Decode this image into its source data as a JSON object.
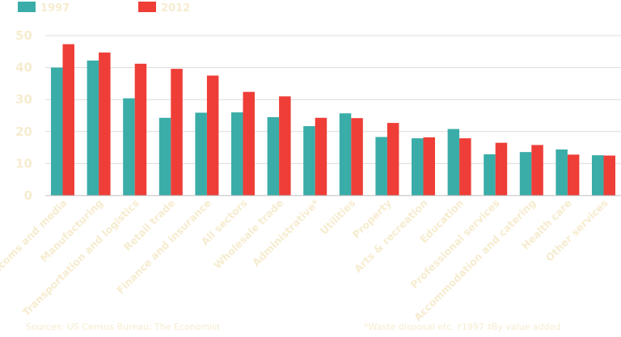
{
  "chart_data": {
    "type": "bar",
    "title": "",
    "xlabel": "",
    "ylabel": "",
    "ylim": [
      0,
      50
    ],
    "yticks": [
      0,
      10,
      20,
      30,
      40,
      50
    ],
    "grid": true,
    "legend": "top-left",
    "categories": [
      "IT, telecoms and media",
      "Manufacturing",
      "Transportation and logistics",
      "Retail trade",
      "Finance and insurance",
      "All sectors",
      "Wholesale trade",
      "Administrative*",
      "Utilities",
      "Property",
      "Arts & recreation",
      "Education",
      "Professional services",
      "Accommodation and catering",
      "Health care",
      "Other services"
    ],
    "series": [
      {
        "name": "1997",
        "color": "#3aada8",
        "values": [
          40,
          42.2,
          30.4,
          24.3,
          25.9,
          26,
          24.5,
          21.7,
          25.7,
          18.3,
          17.9,
          20.8,
          12.9,
          13.6,
          14.4,
          12.6
        ]
      },
      {
        "name": "2012",
        "color": "#ee3e37",
        "values": [
          47.3,
          44.7,
          41.2,
          39.6,
          37.5,
          32.4,
          31,
          24.3,
          24.2,
          22.7,
          18.2,
          17.9,
          16.5,
          15.8,
          12.8,
          12.5
        ]
      }
    ]
  },
  "footer": {
    "source": "Sources: US Census Bureau; The Economist",
    "note": "*Waste disposal etc.    †1997    ‡By value added"
  }
}
